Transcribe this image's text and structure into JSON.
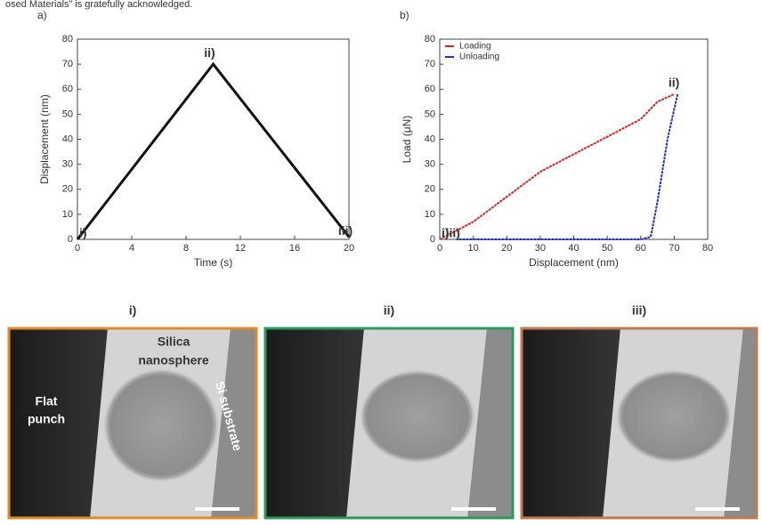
{
  "header_text": "osed Materials” is gratefully acknowledged.",
  "chart_data": [
    {
      "type": "line",
      "panel_label": "a)",
      "x_label": "Time (s)",
      "y_label": "Displacement (nm)",
      "x": [
        0,
        10,
        20
      ],
      "values": [
        0,
        70,
        1
      ],
      "color": "#111111",
      "xlim": [
        0,
        20
      ],
      "xticks": [
        0,
        4,
        8,
        12,
        16,
        20
      ],
      "ylim": [
        0,
        80
      ],
      "yticks": [
        0,
        10,
        20,
        30,
        40,
        50,
        60,
        70,
        80
      ],
      "annotations": [
        {
          "text": "i)",
          "x": 0,
          "y": 0,
          "color": "#e08a2a"
        },
        {
          "text": "ii)",
          "x": 10,
          "y": 70,
          "color": "#2a9a5a"
        },
        {
          "text": "iii)",
          "x": 20,
          "y": 1,
          "color": "#c07a50"
        }
      ]
    },
    {
      "type": "line",
      "panel_label": "b)",
      "x_label": "Displacement (nm)",
      "y_label": "Load (μN)",
      "legend": "top-left",
      "series": [
        {
          "name": "Loading",
          "color": "#dd2222",
          "x": [
            0,
            10,
            20,
            30,
            40,
            50,
            60,
            65,
            70
          ],
          "values": [
            0,
            7,
            17,
            27,
            34,
            41,
            48,
            55,
            58
          ]
        },
        {
          "name": "Unloading",
          "color": "#2233bb",
          "x": [
            71,
            68,
            65,
            63,
            60,
            40,
            20,
            5
          ],
          "values": [
            58,
            40,
            15,
            1,
            0,
            0,
            0,
            0
          ]
        }
      ],
      "xlim": [
        0,
        80
      ],
      "xticks": [
        0,
        10,
        20,
        30,
        40,
        50,
        60,
        70,
        80
      ],
      "ylim": [
        0,
        80
      ],
      "yticks": [
        0,
        10,
        20,
        30,
        40,
        50,
        60,
        70,
        80
      ],
      "annotations": [
        {
          "text": "i)",
          "x": 0,
          "y": 0,
          "color": "#e08a2a"
        },
        {
          "text": "ii)",
          "x": 71,
          "y": 58,
          "color": "#2a9a5a"
        },
        {
          "text": "iii)",
          "x": 5,
          "y": 0,
          "color": "#c07a50"
        }
      ]
    }
  ],
  "micrographs": [
    {
      "label": "i)",
      "color": "#e08a2a",
      "sphere_label": [
        "Silica",
        "nanosphere"
      ],
      "punch_label": [
        "Flat",
        "punch"
      ],
      "substrate_label": "Si substrate"
    },
    {
      "label": "ii)",
      "color": "#2a9a5a"
    },
    {
      "label": "iii)",
      "color": "#c07a50"
    }
  ]
}
